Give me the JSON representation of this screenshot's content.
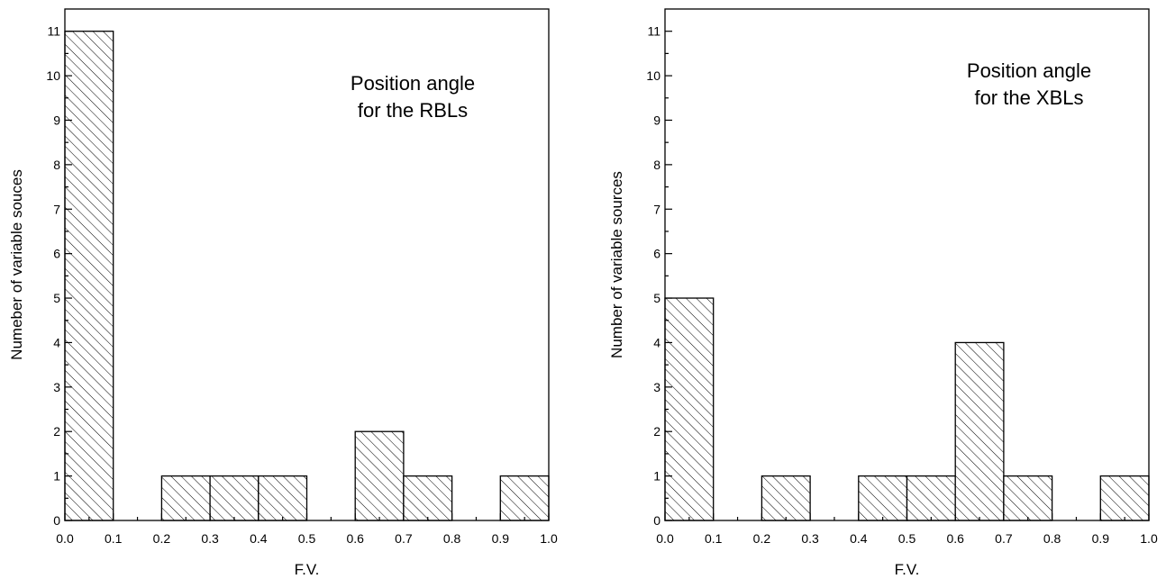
{
  "chart_data": [
    {
      "type": "bar",
      "xlabel": "F.V.",
      "ylabel": "Numeber of variable souces",
      "annotation": [
        "Position angle",
        "for the RBLs"
      ],
      "xlim": [
        0.0,
        1.0
      ],
      "ylim": [
        0,
        11.5
      ],
      "x_ticks": [
        "0.0",
        "0.1",
        "0.2",
        "0.3",
        "0.4",
        "0.5",
        "0.6",
        "0.7",
        "0.8",
        "0.9",
        "1.0"
      ],
      "y_ticks": [
        "0",
        "1",
        "2",
        "3",
        "4",
        "5",
        "6",
        "7",
        "8",
        "9",
        "10",
        "11"
      ],
      "bins": [
        {
          "x0": 0.0,
          "x1": 0.1,
          "value": 11
        },
        {
          "x0": 0.1,
          "x1": 0.2,
          "value": 0
        },
        {
          "x0": 0.2,
          "x1": 0.3,
          "value": 1
        },
        {
          "x0": 0.3,
          "x1": 0.4,
          "value": 1
        },
        {
          "x0": 0.4,
          "x1": 0.5,
          "value": 1
        },
        {
          "x0": 0.5,
          "x1": 0.6,
          "value": 0
        },
        {
          "x0": 0.6,
          "x1": 0.7,
          "value": 2
        },
        {
          "x0": 0.7,
          "x1": 0.8,
          "value": 1
        },
        {
          "x0": 0.8,
          "x1": 0.9,
          "value": 0
        },
        {
          "x0": 0.9,
          "x1": 1.0,
          "value": 1
        }
      ],
      "fill": "diagonal-hatch",
      "color": "#000000"
    },
    {
      "type": "bar",
      "xlabel": "F.V.",
      "ylabel": "Number of variable sources",
      "annotation": [
        "Position angle",
        "for the XBLs"
      ],
      "xlim": [
        0.0,
        1.0
      ],
      "ylim": [
        0,
        11.5
      ],
      "x_ticks": [
        "0.0",
        "0.1",
        "0.2",
        "0.3",
        "0.4",
        "0.5",
        "0.6",
        "0.7",
        "0.8",
        "0.9",
        "1.0"
      ],
      "y_ticks": [
        "0",
        "1",
        "2",
        "3",
        "4",
        "5",
        "6",
        "7",
        "8",
        "9",
        "10",
        "11"
      ],
      "bins": [
        {
          "x0": 0.0,
          "x1": 0.1,
          "value": 5
        },
        {
          "x0": 0.1,
          "x1": 0.2,
          "value": 0
        },
        {
          "x0": 0.2,
          "x1": 0.3,
          "value": 1
        },
        {
          "x0": 0.3,
          "x1": 0.4,
          "value": 0
        },
        {
          "x0": 0.4,
          "x1": 0.5,
          "value": 1
        },
        {
          "x0": 0.5,
          "x1": 0.6,
          "value": 1
        },
        {
          "x0": 0.6,
          "x1": 0.7,
          "value": 4
        },
        {
          "x0": 0.7,
          "x1": 0.8,
          "value": 1
        },
        {
          "x0": 0.8,
          "x1": 0.9,
          "value": 0
        },
        {
          "x0": 0.9,
          "x1": 1.0,
          "value": 1
        }
      ],
      "fill": "diagonal-hatch",
      "color": "#000000"
    }
  ]
}
